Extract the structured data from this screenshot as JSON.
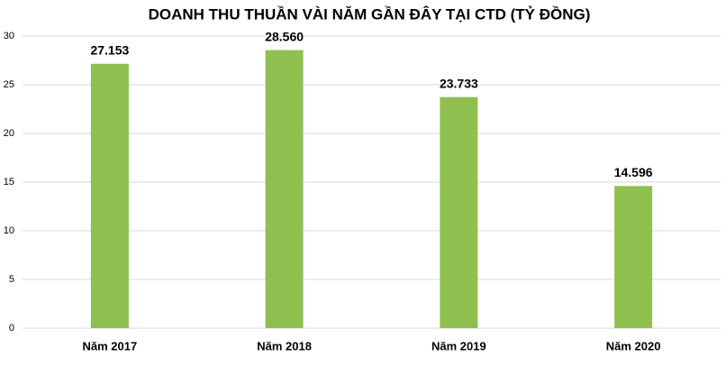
{
  "chart_data": {
    "type": "bar",
    "title": "DOANH THU THUẦN VÀI NĂM GẦN ĐÂY TẠI CTD (TỶ ĐỒNG)",
    "categories": [
      "Năm 2017",
      "Năm 2018",
      "Năm 2019",
      "Năm 2020"
    ],
    "values": [
      27.153,
      28.56,
      23.733,
      14.596
    ],
    "value_labels": [
      "27.153",
      "28.560",
      "23.733",
      "14.596"
    ],
    "color": "#8fc04f",
    "ylim": [
      0,
      30
    ],
    "yticks": [
      0,
      5,
      10,
      15,
      20,
      25,
      30
    ],
    "grid": true
  }
}
